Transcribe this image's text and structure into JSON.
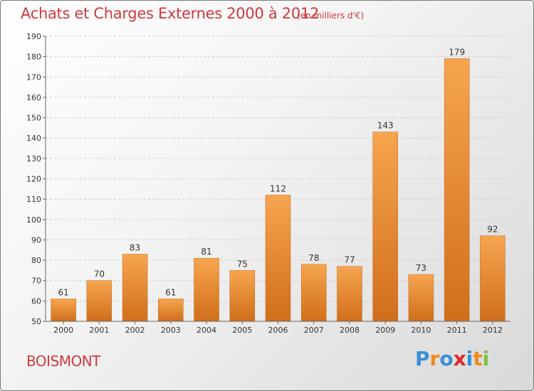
{
  "header": {
    "title": "Achats et Charges Externes 2000 à 2012",
    "subtitle": "(en milliers d'€)"
  },
  "footer": {
    "commune": "BOISMONT",
    "logo_text": "Proxiti",
    "logo_colors": [
      "#3a8fd6",
      "#f08a1c",
      "#3a8fd6",
      "#e2232a",
      "#3a8fd6",
      "#f08a1c",
      "#7cc242"
    ]
  },
  "colors": {
    "bar_top": "#f7a54f",
    "bar_bottom": "#d06e1b",
    "axis_text": "#333333",
    "grid": "#cccccc",
    "title": "#d0393c"
  },
  "chart_data": {
    "type": "bar",
    "categories": [
      "2000",
      "2001",
      "2002",
      "2003",
      "2004",
      "2005",
      "2006",
      "2007",
      "2008",
      "2009",
      "2010",
      "2011",
      "2012"
    ],
    "values": [
      61,
      70,
      83,
      61,
      81,
      75,
      112,
      78,
      77,
      143,
      73,
      179,
      92
    ],
    "ylim": [
      50,
      190
    ],
    "yticks": [
      50,
      60,
      70,
      80,
      90,
      100,
      110,
      120,
      130,
      140,
      150,
      160,
      170,
      180,
      190
    ],
    "grid": true
  }
}
